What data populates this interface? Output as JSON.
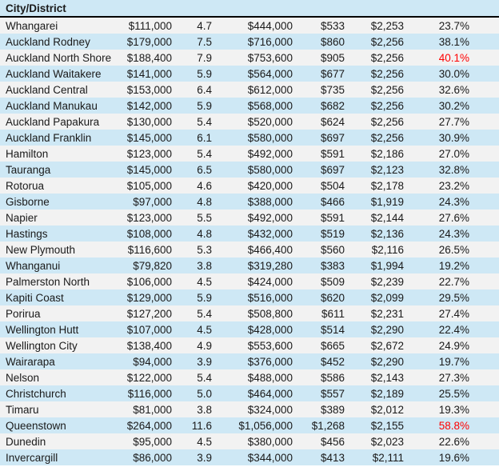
{
  "table": {
    "header": {
      "city_district_label": "City/District"
    },
    "colors": {
      "band_gray": "#f2f2f2",
      "band_blue": "#cee8f5",
      "header_border": "#000000",
      "highlight_red": "#ff0000",
      "text": "#1a1a1a"
    },
    "rows": [
      {
        "city": "Whangarei",
        "values": [
          "$111,000",
          "4.7",
          "$444,000",
          "$533",
          "$2,253",
          "23.7%"
        ],
        "pct_highlight": false
      },
      {
        "city": "Auckland Rodney",
        "values": [
          "$179,000",
          "7.5",
          "$716,000",
          "$860",
          "$2,256",
          "38.1%"
        ],
        "pct_highlight": false
      },
      {
        "city": "Auckland North Shore",
        "values": [
          "$188,400",
          "7.9",
          "$753,600",
          "$905",
          "$2,256",
          "40.1%"
        ],
        "pct_highlight": true
      },
      {
        "city": "Auckland Waitakere",
        "values": [
          "$141,000",
          "5.9",
          "$564,000",
          "$677",
          "$2,256",
          "30.0%"
        ],
        "pct_highlight": false
      },
      {
        "city": "Auckland Central",
        "values": [
          "$153,000",
          "6.4",
          "$612,000",
          "$735",
          "$2,256",
          "32.6%"
        ],
        "pct_highlight": false
      },
      {
        "city": "Auckland Manukau",
        "values": [
          "$142,000",
          "5.9",
          "$568,000",
          "$682",
          "$2,256",
          "30.2%"
        ],
        "pct_highlight": false
      },
      {
        "city": "Auckland Papakura",
        "values": [
          "$130,000",
          "5.4",
          "$520,000",
          "$624",
          "$2,256",
          "27.7%"
        ],
        "pct_highlight": false
      },
      {
        "city": "Auckland Franklin",
        "values": [
          "$145,000",
          "6.1",
          "$580,000",
          "$697",
          "$2,256",
          "30.9%"
        ],
        "pct_highlight": false
      },
      {
        "city": "Hamilton",
        "values": [
          "$123,000",
          "5.4",
          "$492,000",
          "$591",
          "$2,186",
          "27.0%"
        ],
        "pct_highlight": false
      },
      {
        "city": "Tauranga",
        "values": [
          "$145,000",
          "6.5",
          "$580,000",
          "$697",
          "$2,123",
          "32.8%"
        ],
        "pct_highlight": false
      },
      {
        "city": "Rotorua",
        "values": [
          "$105,000",
          "4.6",
          "$420,000",
          "$504",
          "$2,178",
          "23.2%"
        ],
        "pct_highlight": false
      },
      {
        "city": "Gisborne",
        "values": [
          "$97,000",
          "4.8",
          "$388,000",
          "$466",
          "$1,919",
          "24.3%"
        ],
        "pct_highlight": false
      },
      {
        "city": "Napier",
        "values": [
          "$123,000",
          "5.5",
          "$492,000",
          "$591",
          "$2,144",
          "27.6%"
        ],
        "pct_highlight": false
      },
      {
        "city": "Hastings",
        "values": [
          "$108,000",
          "4.8",
          "$432,000",
          "$519",
          "$2,136",
          "24.3%"
        ],
        "pct_highlight": false
      },
      {
        "city": "New Plymouth",
        "values": [
          "$116,600",
          "5.3",
          "$466,400",
          "$560",
          "$2,116",
          "26.5%"
        ],
        "pct_highlight": false
      },
      {
        "city": "Whanganui",
        "values": [
          "$79,820",
          "3.8",
          "$319,280",
          "$383",
          "$1,994",
          "19.2%"
        ],
        "pct_highlight": false
      },
      {
        "city": "Palmerston North",
        "values": [
          "$106,000",
          "4.5",
          "$424,000",
          "$509",
          "$2,239",
          "22.7%"
        ],
        "pct_highlight": false
      },
      {
        "city": "Kapiti Coast",
        "values": [
          "$129,000",
          "5.9",
          "$516,000",
          "$620",
          "$2,099",
          "29.5%"
        ],
        "pct_highlight": false
      },
      {
        "city": "Porirua",
        "values": [
          "$127,200",
          "5.4",
          "$508,800",
          "$611",
          "$2,231",
          "27.4%"
        ],
        "pct_highlight": false
      },
      {
        "city": "Wellington Hutt",
        "values": [
          "$107,000",
          "4.5",
          "$428,000",
          "$514",
          "$2,290",
          "22.4%"
        ],
        "pct_highlight": false
      },
      {
        "city": "Wellington City",
        "values": [
          "$138,400",
          "4.9",
          "$553,600",
          "$665",
          "$2,672",
          "24.9%"
        ],
        "pct_highlight": false
      },
      {
        "city": "Wairarapa",
        "values": [
          "$94,000",
          "3.9",
          "$376,000",
          "$452",
          "$2,290",
          "19.7%"
        ],
        "pct_highlight": false
      },
      {
        "city": "Nelson",
        "values": [
          "$122,000",
          "5.4",
          "$488,000",
          "$586",
          "$2,143",
          "27.3%"
        ],
        "pct_highlight": false
      },
      {
        "city": "Christchurch",
        "values": [
          "$116,000",
          "5.0",
          "$464,000",
          "$557",
          "$2,189",
          "25.5%"
        ],
        "pct_highlight": false
      },
      {
        "city": "Timaru",
        "values": [
          "$81,000",
          "3.8",
          "$324,000",
          "$389",
          "$2,012",
          "19.3%"
        ],
        "pct_highlight": false
      },
      {
        "city": "Queenstown",
        "values": [
          "$264,000",
          "11.6",
          "$1,056,000",
          "$1,268",
          "$2,155",
          "58.8%"
        ],
        "pct_highlight": true
      },
      {
        "city": "Dunedin",
        "values": [
          "$95,000",
          "4.5",
          "$380,000",
          "$456",
          "$2,023",
          "22.6%"
        ],
        "pct_highlight": false
      },
      {
        "city": "Invercargill",
        "values": [
          "$86,000",
          "3.9",
          "$344,000",
          "$413",
          "$2,111",
          "19.6%"
        ],
        "pct_highlight": false
      }
    ]
  }
}
